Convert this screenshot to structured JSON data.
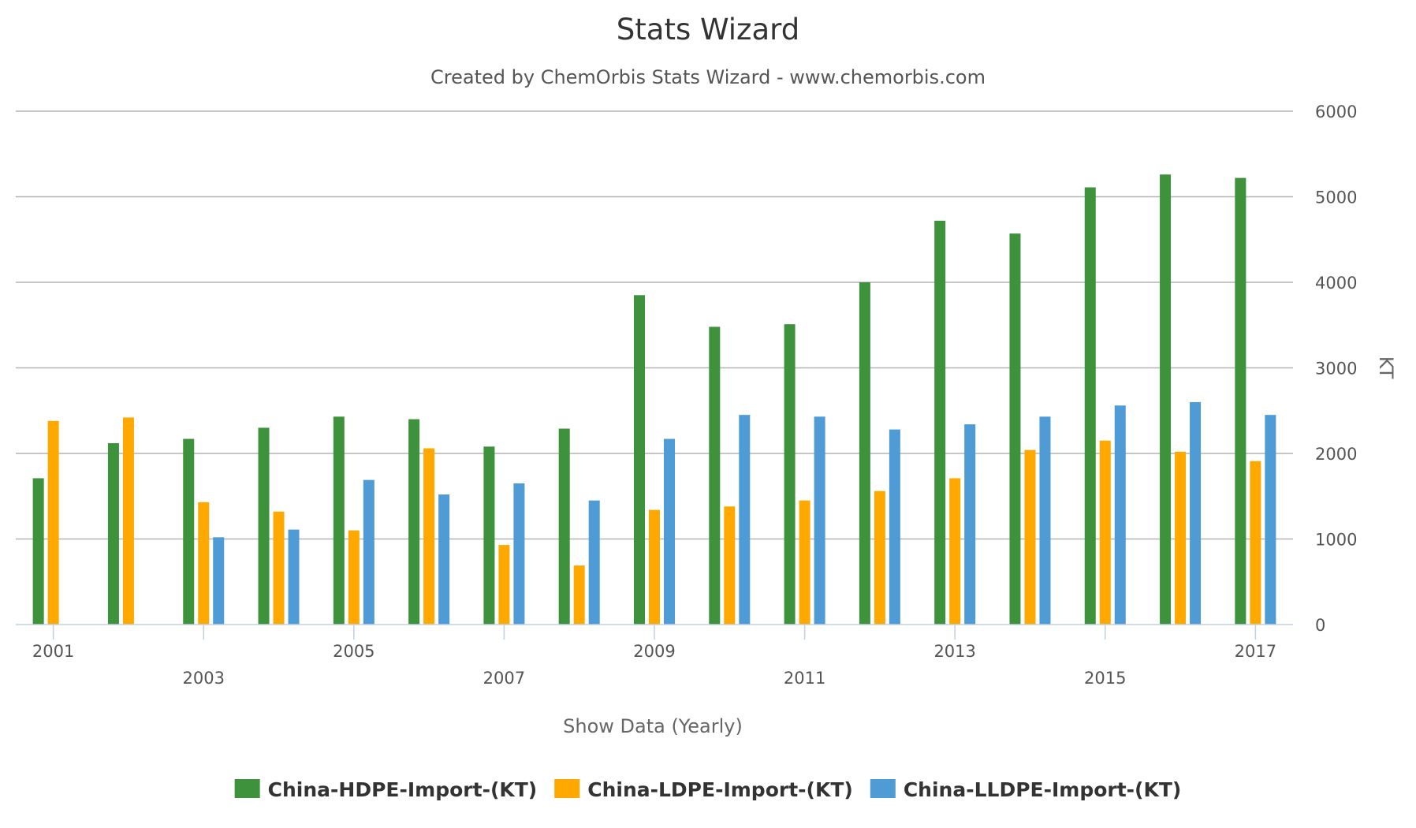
{
  "chart_data": {
    "type": "bar",
    "title": "Stats Wizard",
    "subtitle": "Created by ChemOrbis Stats Wizard - www.chemorbis.com",
    "xlabel": "Show Data (Yearly)",
    "ylabel": "KT",
    "ylim": [
      0,
      6000
    ],
    "yticks": [
      0,
      1000,
      2000,
      3000,
      4000,
      5000,
      6000
    ],
    "grid": true,
    "legend_position": "bottom-center",
    "categories": [
      "2001",
      "2002",
      "2003",
      "2004",
      "2005",
      "2006",
      "2007",
      "2008",
      "2009",
      "2010",
      "2011",
      "2012",
      "2013",
      "2014",
      "2015",
      "2016",
      "2017"
    ],
    "xtick_labels": [
      "2001",
      "2003",
      "2005",
      "2007",
      "2009",
      "2011",
      "2013",
      "2015",
      "2017"
    ],
    "series": [
      {
        "name": "China-HDPE-Import-(KT)",
        "color": "#3e923c",
        "values": [
          1710,
          2120,
          2170,
          2300,
          2430,
          2400,
          2080,
          2290,
          3850,
          3480,
          3510,
          4000,
          4720,
          4570,
          5110,
          5260,
          5220
        ]
      },
      {
        "name": "China-LDPE-Import-(KT)",
        "color": "#ffa800",
        "values": [
          2380,
          2420,
          1430,
          1320,
          1100,
          2060,
          930,
          690,
          1340,
          1380,
          1450,
          1560,
          1710,
          2040,
          2150,
          2020,
          1910
        ]
      },
      {
        "name": "China-LLDPE-Import-(KT)",
        "color": "#4e9bd5",
        "values": [
          null,
          null,
          1020,
          1110,
          1690,
          1520,
          1650,
          1450,
          2170,
          2450,
          2430,
          2280,
          2340,
          2430,
          2560,
          2600,
          2450
        ]
      }
    ]
  }
}
